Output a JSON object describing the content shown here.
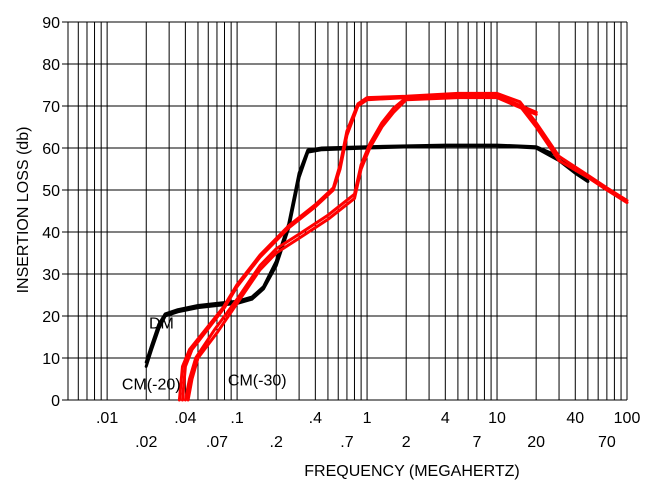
{
  "chart_data": {
    "type": "line",
    "title": "",
    "xlabel": "FREQUENCY (MEGAHERTZ)",
    "ylabel": "INSERTION LOSS (db)",
    "x_scale": "log",
    "xlim": [
      0.005,
      100
    ],
    "ylim": [
      0,
      90
    ],
    "grid": true,
    "y_ticks": [
      "0",
      "10",
      "20",
      "30",
      "40",
      "50",
      "60",
      "70",
      "80",
      "90"
    ],
    "x_ticks_upper": [
      {
        "v": 0.01,
        "label": ".01"
      },
      {
        "v": 0.04,
        "label": ".04"
      },
      {
        "v": 0.1,
        "label": ".1"
      },
      {
        "v": 0.4,
        "label": ".4"
      },
      {
        "v": 1,
        "label": "1"
      },
      {
        "v": 4,
        "label": "4"
      },
      {
        "v": 10,
        "label": "10"
      },
      {
        "v": 40,
        "label": "40"
      },
      {
        "v": 100,
        "label": "100"
      }
    ],
    "x_ticks_lower": [
      {
        "v": 0.02,
        "label": ".02"
      },
      {
        "v": 0.07,
        "label": ".07"
      },
      {
        "v": 0.2,
        "label": ".2"
      },
      {
        "v": 0.7,
        "label": ".7"
      },
      {
        "v": 2,
        "label": "2"
      },
      {
        "v": 7,
        "label": "7"
      },
      {
        "v": 20,
        "label": "20"
      },
      {
        "v": 70,
        "label": "70"
      }
    ],
    "series": [
      {
        "name": "DM",
        "color": "#000000",
        "points": [
          [
            0.02,
            9
          ],
          [
            0.022,
            13
          ],
          [
            0.025,
            18
          ],
          [
            0.028,
            20.5
          ],
          [
            0.035,
            21.5
          ],
          [
            0.05,
            22.5
          ],
          [
            0.07,
            23
          ],
          [
            0.1,
            23.5
          ],
          [
            0.13,
            24.5
          ],
          [
            0.16,
            27
          ],
          [
            0.2,
            33
          ],
          [
            0.25,
            42
          ],
          [
            0.3,
            54
          ],
          [
            0.35,
            59.5
          ],
          [
            0.45,
            60
          ],
          [
            1,
            60.3
          ],
          [
            4,
            60.7
          ],
          [
            10,
            60.7
          ],
          [
            20,
            60.3
          ],
          [
            30,
            58
          ],
          [
            40,
            55
          ],
          [
            50,
            52.5
          ]
        ]
      },
      {
        "name": "DM",
        "color": "#000000",
        "points": [
          [
            0.02,
            8
          ],
          [
            0.022,
            12
          ],
          [
            0.025,
            17
          ],
          [
            0.028,
            20
          ],
          [
            0.035,
            21
          ],
          [
            0.05,
            22
          ],
          [
            0.07,
            22.5
          ],
          [
            0.1,
            23
          ],
          [
            0.13,
            24
          ],
          [
            0.16,
            26.5
          ],
          [
            0.2,
            32
          ],
          [
            0.25,
            41
          ],
          [
            0.3,
            53
          ],
          [
            0.35,
            59
          ],
          [
            0.45,
            59.6
          ],
          [
            1,
            60
          ],
          [
            4,
            60.5
          ],
          [
            10,
            60.5
          ],
          [
            20,
            60
          ],
          [
            30,
            57
          ],
          [
            40,
            54
          ],
          [
            50,
            52
          ]
        ]
      },
      {
        "name": "CM(-20)",
        "color": "#ff0000",
        "points": [
          [
            0.038,
            0
          ],
          [
            0.04,
            8
          ],
          [
            0.045,
            12
          ],
          [
            0.06,
            17
          ],
          [
            0.08,
            22
          ],
          [
            0.1,
            27
          ],
          [
            0.15,
            34
          ],
          [
            0.25,
            41
          ],
          [
            0.4,
            46
          ],
          [
            0.55,
            50
          ],
          [
            0.62,
            55
          ],
          [
            0.7,
            63
          ],
          [
            0.85,
            70
          ],
          [
            1,
            71.5
          ],
          [
            2,
            72
          ],
          [
            5,
            72.7
          ],
          [
            10,
            72.5
          ],
          [
            15,
            70
          ],
          [
            20,
            65
          ],
          [
            30,
            57
          ],
          [
            50,
            53
          ],
          [
            70,
            50
          ],
          [
            100,
            47
          ]
        ]
      },
      {
        "name": "CM(-20)",
        "color": "#ff0000",
        "points": [
          [
            0.036,
            0
          ],
          [
            0.038,
            8
          ],
          [
            0.043,
            12
          ],
          [
            0.058,
            17
          ],
          [
            0.078,
            22
          ],
          [
            0.1,
            27.5
          ],
          [
            0.15,
            34.5
          ],
          [
            0.25,
            41.5
          ],
          [
            0.4,
            46.5
          ],
          [
            0.55,
            50.5
          ],
          [
            0.62,
            56
          ],
          [
            0.7,
            64
          ],
          [
            0.85,
            70.5
          ],
          [
            1,
            72
          ],
          [
            2,
            72.3
          ],
          [
            5,
            73
          ],
          [
            10,
            73
          ],
          [
            15,
            71
          ],
          [
            20,
            66
          ],
          [
            30,
            58
          ],
          [
            50,
            53.5
          ],
          [
            70,
            50.5
          ],
          [
            100,
            47.5
          ]
        ]
      },
      {
        "name": "CM(-30)",
        "color": "#ff0000",
        "points": [
          [
            0.042,
            0
          ],
          [
            0.045,
            5
          ],
          [
            0.05,
            10
          ],
          [
            0.07,
            16
          ],
          [
            0.1,
            23
          ],
          [
            0.15,
            31
          ],
          [
            0.2,
            35
          ],
          [
            0.3,
            38.5
          ],
          [
            0.5,
            43
          ],
          [
            0.8,
            48
          ],
          [
            0.9,
            55
          ],
          [
            1.05,
            60
          ],
          [
            1.3,
            65
          ],
          [
            1.6,
            68.5
          ],
          [
            2,
            71.5
          ],
          [
            5,
            72
          ],
          [
            10,
            72
          ],
          [
            20,
            68
          ]
        ]
      },
      {
        "name": "CM(-30)",
        "color": "#ff0000",
        "points": [
          [
            0.04,
            0
          ],
          [
            0.043,
            5
          ],
          [
            0.048,
            10
          ],
          [
            0.068,
            17
          ],
          [
            0.1,
            24
          ],
          [
            0.15,
            32
          ],
          [
            0.2,
            36
          ],
          [
            0.3,
            39.5
          ],
          [
            0.5,
            44
          ],
          [
            0.8,
            49
          ],
          [
            0.9,
            56
          ],
          [
            1.05,
            61
          ],
          [
            1.3,
            66
          ],
          [
            1.6,
            69.5
          ],
          [
            2,
            72
          ],
          [
            5,
            72.5
          ],
          [
            10,
            72.5
          ],
          [
            20,
            68.5
          ]
        ]
      }
    ],
    "annotations": [
      {
        "text": "DM",
        "x": 0.021,
        "y": 17
      },
      {
        "text": "CM(-20)",
        "x": 0.013,
        "y": 2.5
      },
      {
        "text": "CM(-30)",
        "x": 0.085,
        "y": 3.5
      }
    ]
  }
}
